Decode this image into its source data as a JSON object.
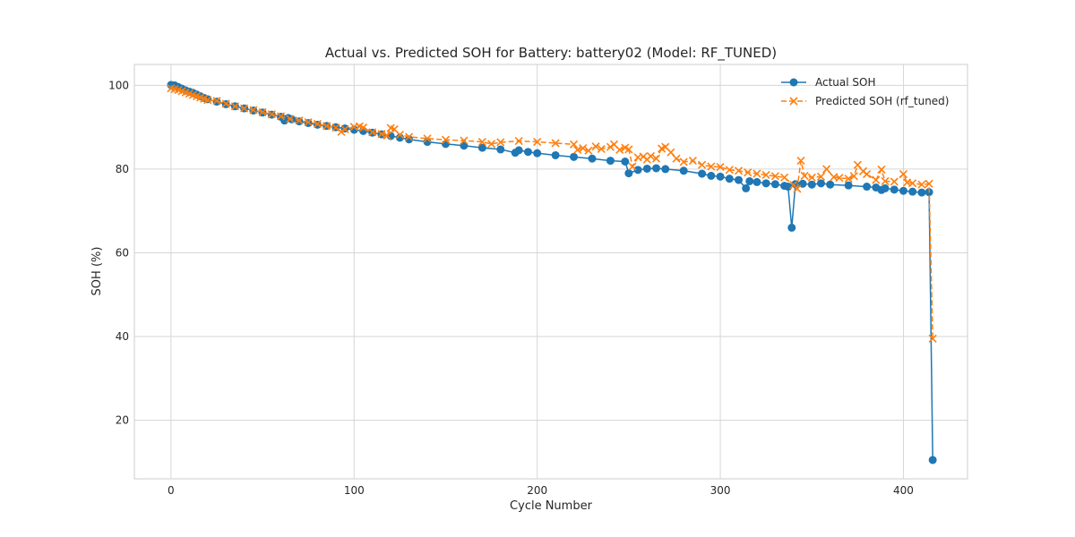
{
  "chart_data": {
    "type": "line",
    "title": "Actual vs. Predicted SOH for Battery: battery02 (Model: RF_TUNED)",
    "xlabel": "Cycle Number",
    "ylabel": "SOH (%)",
    "xlim": [
      -20,
      435
    ],
    "ylim": [
      6,
      105
    ],
    "xticks": [
      0,
      100,
      200,
      300,
      400
    ],
    "yticks": [
      20,
      40,
      60,
      80,
      100
    ],
    "grid": true,
    "legend_position": "top-right",
    "series": [
      {
        "name": "Actual SOH",
        "color": "#1f77b4",
        "marker": "circle",
        "line_style": "solid",
        "x": [
          0,
          2,
          4,
          6,
          8,
          10,
          12,
          14,
          16,
          18,
          20,
          25,
          30,
          35,
          40,
          45,
          50,
          55,
          60,
          62,
          64,
          66,
          70,
          75,
          80,
          85,
          90,
          95,
          100,
          105,
          110,
          115,
          120,
          125,
          130,
          140,
          150,
          160,
          170,
          180,
          188,
          190,
          195,
          200,
          210,
          220,
          230,
          240,
          248,
          250,
          255,
          260,
          265,
          270,
          280,
          290,
          295,
          300,
          305,
          310,
          314,
          316,
          320,
          325,
          330,
          335,
          337,
          339,
          341,
          345,
          350,
          355,
          360,
          370,
          380,
          385,
          388,
          390,
          395,
          400,
          405,
          410,
          414,
          416
        ],
        "y": [
          100.1,
          100.0,
          99.6,
          99.2,
          98.8,
          98.5,
          98.2,
          97.8,
          97.4,
          97.0,
          96.7,
          96.1,
          95.5,
          95.0,
          94.5,
          94.0,
          93.5,
          93.0,
          92.5,
          91.6,
          92.2,
          91.9,
          91.4,
          91.0,
          90.6,
          90.3,
          90.0,
          89.7,
          89.4,
          89.1,
          88.7,
          88.3,
          87.9,
          87.5,
          87.1,
          86.5,
          86.0,
          85.6,
          85.1,
          84.7,
          83.9,
          84.5,
          84.1,
          83.8,
          83.3,
          82.9,
          82.5,
          82.0,
          81.8,
          79.0,
          79.8,
          80.1,
          80.2,
          80.0,
          79.6,
          78.9,
          78.4,
          78.2,
          77.7,
          77.4,
          75.4,
          77.1,
          76.9,
          76.6,
          76.4,
          76.0,
          75.8,
          66.0,
          76.4,
          76.5,
          76.3,
          76.6,
          76.3,
          76.1,
          75.8,
          75.6,
          75.0,
          75.4,
          75.1,
          74.8,
          74.6,
          74.4,
          74.5,
          10.5
        ]
      },
      {
        "name": "Predicted SOH (rf_tuned)",
        "color": "#ff7f0e",
        "marker": "x",
        "line_style": "dashed",
        "x": [
          0,
          2,
          4,
          6,
          8,
          10,
          12,
          14,
          16,
          18,
          20,
          25,
          30,
          35,
          40,
          45,
          50,
          55,
          60,
          65,
          70,
          75,
          80,
          85,
          90,
          93,
          95,
          100,
          103,
          105,
          110,
          115,
          118,
          120,
          122,
          125,
          130,
          140,
          150,
          160,
          170,
          175,
          180,
          190,
          200,
          210,
          220,
          222,
          225,
          228,
          232,
          235,
          240,
          242,
          245,
          248,
          250,
          252,
          255,
          258,
          260,
          262,
          265,
          268,
          270,
          273,
          276,
          280,
          285,
          290,
          295,
          300,
          305,
          310,
          315,
          320,
          325,
          330,
          335,
          340,
          342,
          344,
          346,
          350,
          355,
          358,
          362,
          365,
          370,
          373,
          375,
          378,
          380,
          385,
          388,
          390,
          395,
          400,
          402,
          405,
          410,
          414,
          416
        ],
        "y": [
          99.3,
          99.1,
          98.9,
          98.6,
          98.3,
          98.0,
          97.7,
          97.4,
          97.1,
          96.8,
          96.5,
          96.3,
          95.6,
          95.0,
          94.5,
          94.1,
          93.6,
          93.1,
          92.6,
          92.0,
          91.6,
          91.2,
          90.8,
          90.3,
          89.9,
          88.9,
          89.5,
          90.1,
          90.2,
          89.9,
          88.8,
          88.4,
          88.0,
          89.8,
          89.5,
          88.2,
          87.7,
          87.3,
          87.0,
          86.8,
          86.5,
          86.0,
          86.4,
          86.7,
          86.5,
          86.2,
          85.9,
          84.6,
          85.0,
          84.4,
          85.4,
          84.8,
          85.3,
          85.9,
          84.6,
          85.1,
          84.7,
          80.6,
          82.8,
          83.0,
          82.3,
          83.1,
          82.5,
          84.9,
          85.3,
          84.0,
          82.5,
          81.7,
          82.0,
          81.0,
          80.6,
          80.5,
          79.8,
          79.6,
          79.2,
          78.9,
          78.6,
          78.3,
          78.0,
          76.2,
          75.3,
          82.0,
          78.4,
          78.0,
          78.2,
          80.0,
          78.1,
          77.9,
          77.7,
          78.3,
          81.0,
          79.5,
          78.8,
          77.4,
          79.9,
          77.1,
          77.0,
          78.8,
          76.8,
          76.6,
          76.3,
          76.5,
          39.5
        ]
      }
    ]
  }
}
